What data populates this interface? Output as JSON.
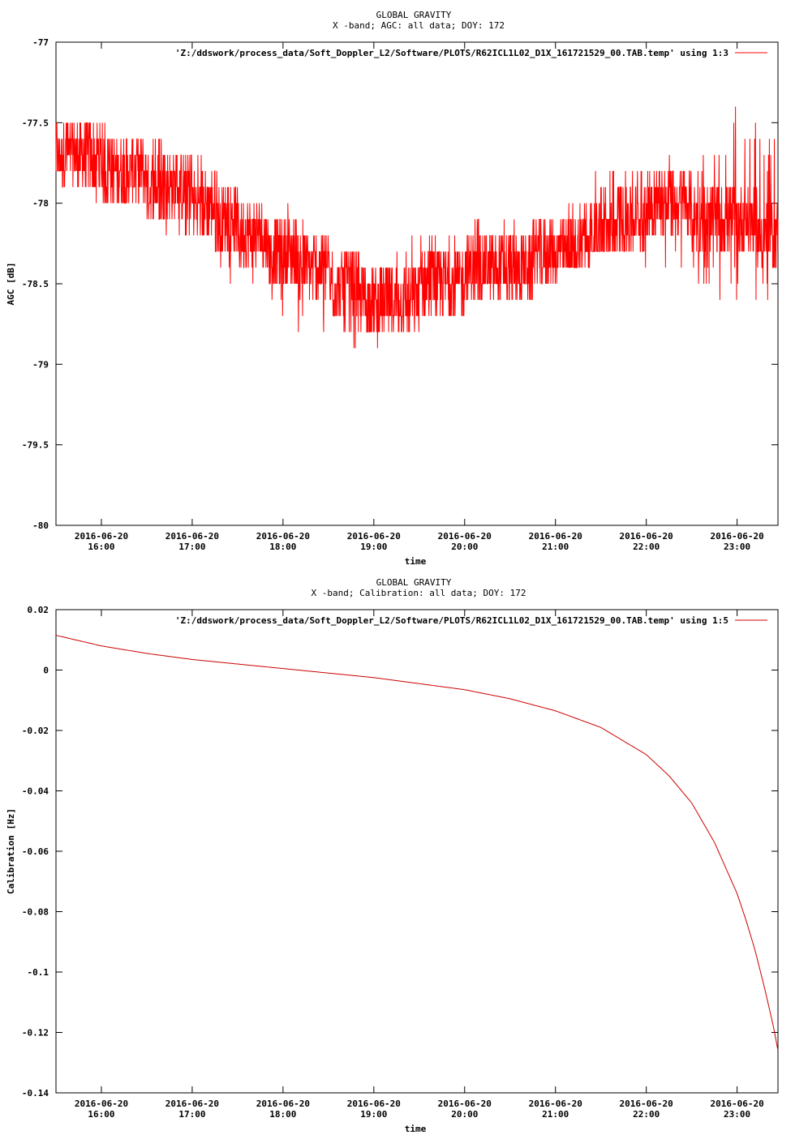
{
  "chart_data": [
    {
      "type": "line",
      "title": "GLOBAL GRAVITY",
      "subtitle": "X -band; AGC: all data; DOY: 172",
      "xlabel": "time",
      "ylabel": "AGC [dB]",
      "ylim": [
        -80,
        -77
      ],
      "yticks": [
        -77,
        -77.5,
        -78,
        -78.5,
        -79,
        -79.5,
        -80
      ],
      "ytick_labels": [
        "-77",
        "-77.5",
        "-78",
        "-78.5",
        "-79",
        "-79.5",
        "-80"
      ],
      "xlim_hours": [
        15.5,
        23.45
      ],
      "xticks_hours": [
        16,
        17,
        18,
        19,
        20,
        21,
        22,
        23
      ],
      "xtick_dates": [
        "2016-06-20",
        "2016-06-20",
        "2016-06-20",
        "2016-06-20",
        "2016-06-20",
        "2016-06-20",
        "2016-06-20",
        "2016-06-20"
      ],
      "xtick_times": [
        "16:00",
        "17:00",
        "18:00",
        "19:00",
        "20:00",
        "21:00",
        "22:00",
        "23:00"
      ],
      "grid": false,
      "legend_position": "top-right",
      "series": [
        {
          "name": "'Z:/ddswork/process_data/Soft_Doppler_L2/Software/PLOTS/R62ICL1L02_D1X_161721529_00.TAB.temp' using 1:3",
          "color": "#ff0000",
          "x_hours": [
            15.5,
            16.0,
            16.5,
            17.0,
            17.5,
            18.0,
            18.5,
            19.0,
            19.5,
            20.0,
            20.5,
            21.0,
            21.5,
            22.0,
            22.5,
            23.0,
            23.45
          ],
          "y_mean": [
            -77.7,
            -77.75,
            -77.85,
            -77.95,
            -78.15,
            -78.3,
            -78.45,
            -78.6,
            -78.55,
            -78.45,
            -78.4,
            -78.3,
            -78.2,
            -78.05,
            -78.05,
            -78.1,
            -78.2
          ],
          "y_min_band": [
            -77.9,
            -78.0,
            -78.1,
            -78.3,
            -78.5,
            -78.7,
            -78.9,
            -78.9,
            -78.8,
            -78.7,
            -78.6,
            -78.5,
            -78.3,
            -78.4,
            -78.5,
            -78.6,
            -78.6
          ],
          "y_max_band": [
            -77.4,
            -77.5,
            -77.5,
            -77.7,
            -77.9,
            -78.0,
            -78.2,
            -78.4,
            -78.2,
            -78.1,
            -78.1,
            -78.0,
            -77.8,
            -77.7,
            -77.7,
            -77.4,
            -77.6
          ]
        }
      ]
    },
    {
      "type": "line",
      "title": "GLOBAL GRAVITY",
      "subtitle": "X -band; Calibration: all data; DOY: 172",
      "xlabel": "time",
      "ylabel": "Calibration [Hz]",
      "ylim": [
        -0.14,
        0.02
      ],
      "yticks": [
        0.02,
        0,
        -0.02,
        -0.04,
        -0.06,
        -0.08,
        -0.1,
        -0.12,
        -0.14
      ],
      "ytick_labels": [
        "0.02",
        "0",
        "-0.02",
        "-0.04",
        "-0.06",
        "-0.08",
        "-0.1",
        "-0.12",
        "-0.14"
      ],
      "xlim_hours": [
        15.5,
        23.45
      ],
      "xticks_hours": [
        16,
        17,
        18,
        19,
        20,
        21,
        22,
        23
      ],
      "xtick_dates": [
        "2016-06-20",
        "2016-06-20",
        "2016-06-20",
        "2016-06-20",
        "2016-06-20",
        "2016-06-20",
        "2016-06-20",
        "2016-06-20"
      ],
      "xtick_times": [
        "16:00",
        "17:00",
        "18:00",
        "19:00",
        "20:00",
        "21:00",
        "22:00",
        "23:00"
      ],
      "grid": false,
      "legend_position": "top-right",
      "series": [
        {
          "name": "'Z:/ddswork/process_data/Soft_Doppler_L2/Software/PLOTS/R62ICL1L02_D1X_161721529_00.TAB.temp' using 1:5",
          "color": "#cc0000",
          "x_hours": [
            15.5,
            16.0,
            16.5,
            17.0,
            17.5,
            18.0,
            18.5,
            19.0,
            19.5,
            20.0,
            20.5,
            21.0,
            21.5,
            22.0,
            22.25,
            22.5,
            22.75,
            23.0,
            23.1,
            23.2,
            23.3,
            23.4,
            23.45
          ],
          "y": [
            0.0115,
            0.008,
            0.0055,
            0.0035,
            0.002,
            0.0005,
            -0.001,
            -0.0025,
            -0.0045,
            -0.0065,
            -0.0095,
            -0.0135,
            -0.019,
            -0.028,
            -0.035,
            -0.044,
            -0.057,
            -0.074,
            -0.083,
            -0.093,
            -0.105,
            -0.118,
            -0.126
          ]
        }
      ]
    }
  ]
}
